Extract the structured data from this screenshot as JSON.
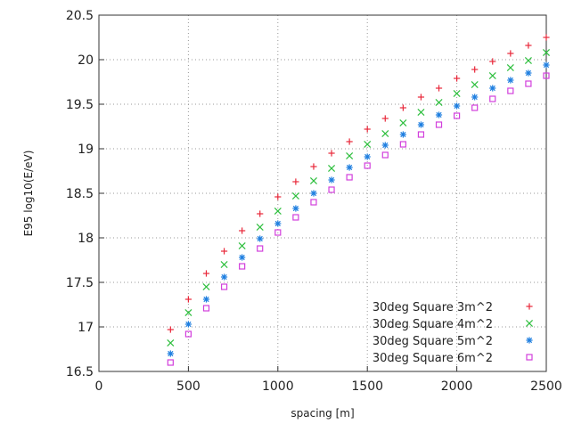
{
  "chart_data": {
    "type": "scatter",
    "title": "",
    "xlabel": "spacing [m]",
    "ylabel": "E95 log10(E/eV)",
    "xlim": [
      0,
      2500
    ],
    "ylim": [
      16.5,
      20.5
    ],
    "xticks": [
      0,
      500,
      1000,
      1500,
      2000,
      2500
    ],
    "yticks": [
      16.5,
      17,
      17.5,
      18,
      18.5,
      19,
      19.5,
      20,
      20.5
    ],
    "xtick_labels": [
      "0",
      "500",
      "1000",
      "1500",
      "2000",
      "2500"
    ],
    "ytick_labels": [
      "16.5",
      "17",
      "17.5",
      "18",
      "18.5",
      "19",
      "19.5",
      "20",
      "20.5"
    ],
    "grid": true,
    "legend_position": "bottom-right",
    "x": [
      400,
      500,
      600,
      700,
      800,
      900,
      1000,
      1100,
      1200,
      1300,
      1400,
      1500,
      1600,
      1700,
      1800,
      1900,
      2000,
      2100,
      2200,
      2300,
      2400,
      2500
    ],
    "series": [
      {
        "name": "30deg Square 3m^2",
        "marker": "plus",
        "color": "#e8283a",
        "values": [
          16.97,
          17.31,
          17.6,
          17.85,
          18.08,
          18.27,
          18.46,
          18.63,
          18.8,
          18.95,
          19.08,
          19.22,
          19.34,
          19.46,
          19.58,
          19.68,
          19.79,
          19.89,
          19.98,
          20.07,
          20.16,
          20.25
        ]
      },
      {
        "name": "30deg Square 4m^2",
        "marker": "cross",
        "color": "#2fbf3f",
        "values": [
          16.82,
          17.16,
          17.45,
          17.7,
          17.91,
          18.12,
          18.3,
          18.47,
          18.64,
          18.78,
          18.92,
          19.05,
          19.17,
          19.29,
          19.41,
          19.52,
          19.62,
          19.72,
          19.82,
          19.91,
          19.99,
          20.08
        ]
      },
      {
        "name": "30deg Square 5m^2",
        "marker": "star",
        "color": "#1f7fe0",
        "values": [
          16.7,
          17.03,
          17.31,
          17.56,
          17.78,
          17.99,
          18.16,
          18.33,
          18.5,
          18.65,
          18.79,
          18.91,
          19.04,
          19.16,
          19.27,
          19.38,
          19.48,
          19.58,
          19.68,
          19.77,
          19.85,
          19.94
        ]
      },
      {
        "name": "30deg Square 6m^2",
        "marker": "square",
        "color": "#d23fdc",
        "values": [
          16.6,
          16.92,
          17.21,
          17.45,
          17.68,
          17.88,
          18.06,
          18.23,
          18.4,
          18.54,
          18.68,
          18.81,
          18.93,
          19.05,
          19.16,
          19.27,
          19.37,
          19.46,
          19.56,
          19.65,
          19.73,
          19.82
        ]
      }
    ]
  }
}
